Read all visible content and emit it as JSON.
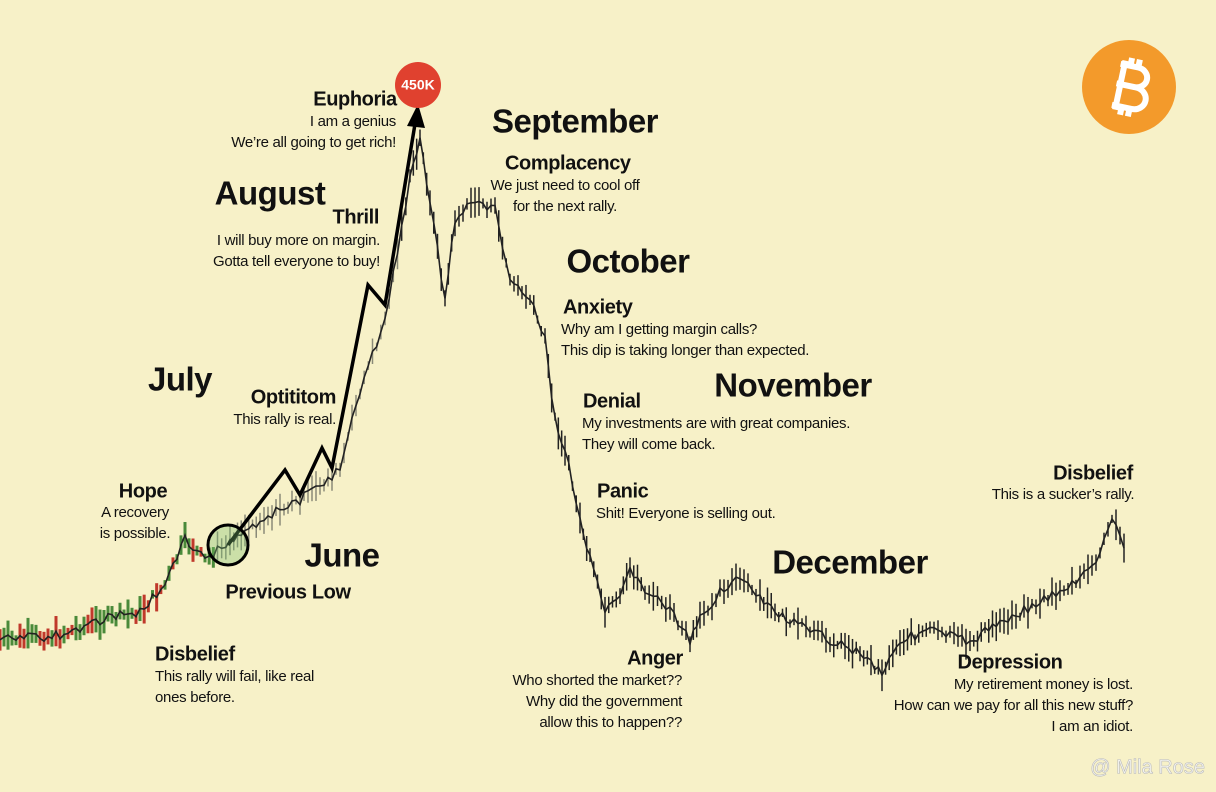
{
  "badge": "450K",
  "previous_low": "Previous Low",
  "watermark": "@ Mila Rose",
  "months": [
    "July",
    "August",
    "September",
    "October",
    "November",
    "December",
    "June"
  ],
  "stages": [
    {
      "title": "Disbelief",
      "lines": [
        "This rally will fail, like real",
        "ones before."
      ]
    },
    {
      "title": "Hope",
      "lines": [
        "A recovery",
        "is possible."
      ]
    },
    {
      "title": "Optititom",
      "lines": [
        "This rally is real."
      ]
    },
    {
      "title": "Thrill",
      "lines": [
        "I will buy more on margin.",
        "Gotta tell everyone to buy!"
      ]
    },
    {
      "title": "Euphoria",
      "lines": [
        "I am a genius",
        "We’re all going to get rich!"
      ]
    },
    {
      "title": "Complacency",
      "lines": [
        "We just need to cool off",
        "for the next rally."
      ]
    },
    {
      "title": "Anxiety",
      "lines": [
        "Why am I getting margin calls?",
        "This dip is taking longer than expected."
      ]
    },
    {
      "title": "Denial",
      "lines": [
        "My investments are with great companies.",
        "They will come back."
      ]
    },
    {
      "title": "Panic",
      "lines": [
        "Shit! Everyone is selling out."
      ]
    },
    {
      "title": "Anger",
      "lines": [
        "Who shorted the market??",
        "Why did the government",
        "allow this to happen??"
      ]
    },
    {
      "title": "Depression",
      "lines": [
        "My retirement money is lost.",
        "How can we pay for all this new stuff?",
        "I am an idiot."
      ]
    },
    {
      "title": "Disbelief",
      "lines": [
        "This is a sucker’s rally."
      ]
    }
  ]
}
